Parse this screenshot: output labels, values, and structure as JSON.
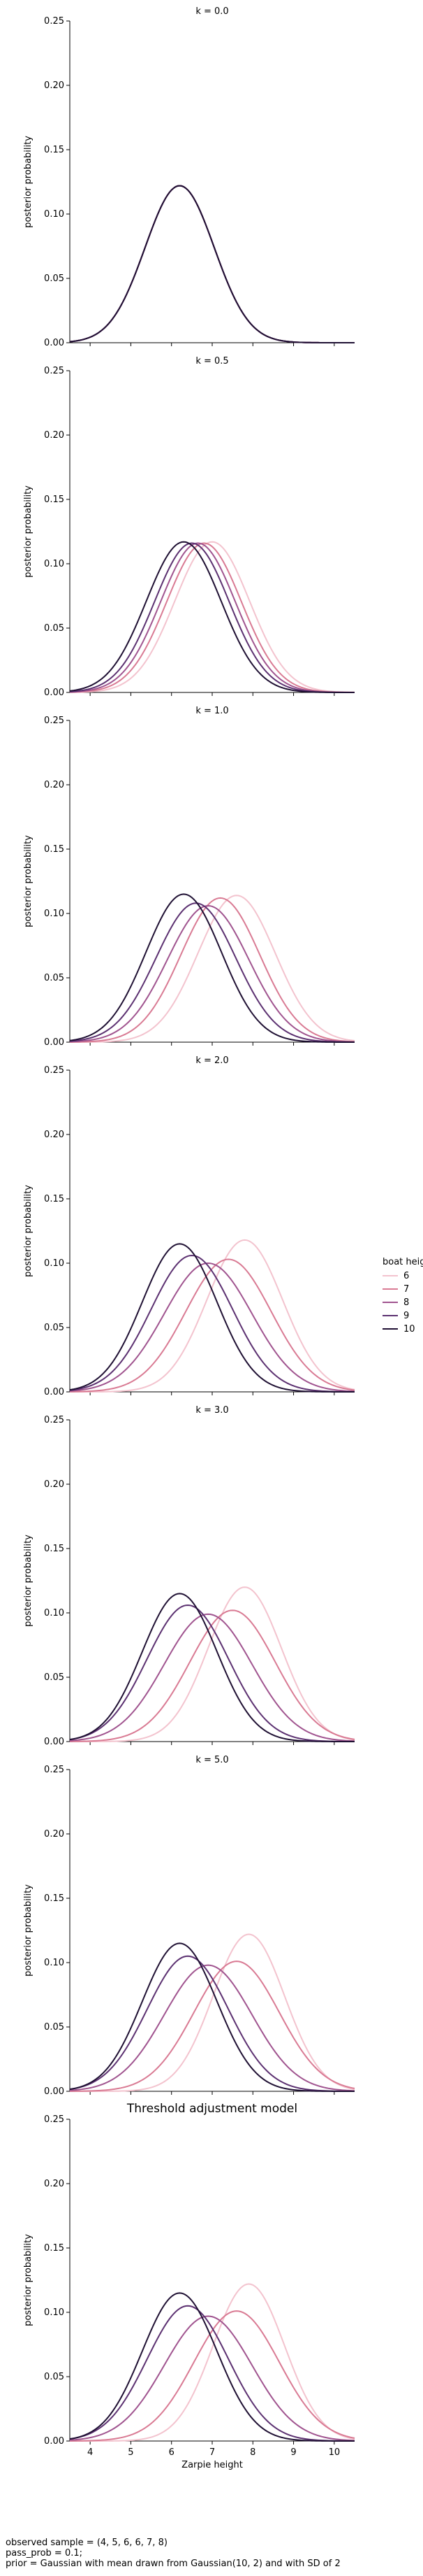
{
  "x_axis_label": "Zarpie height",
  "y_axis_label": "posterior probability",
  "x_ticks": [
    4,
    5,
    6,
    7,
    8,
    9,
    10
  ],
  "y_ticks": [
    0.0,
    0.05,
    0.1,
    0.15,
    0.2,
    0.25
  ],
  "xlim": [
    3.5,
    10.5
  ],
  "ylim": [
    0,
    0.25
  ],
  "legend": {
    "title": "boat height",
    "entries": [
      "6",
      "7",
      "8",
      "9",
      "10"
    ],
    "placement": "right"
  },
  "colors": {
    "6": "#f3c3ce",
    "7": "#d97a93",
    "8": "#a0548f",
    "9": "#5c3171",
    "10": "#1f1033"
  },
  "footer": {
    "line1": "observed sample = (4, 5, 6, 6, 7, 8)",
    "line2": "pass_prob = 0.1;",
    "line3": "prior = Gaussian with mean drawn from Gaussian(10, 2) and with SD of 2"
  },
  "chart_data": [
    {
      "type": "line",
      "title": "k = 0.0",
      "series": [
        {
          "name": "6",
          "peak_x": 6.2,
          "peak_y": 0.122,
          "sd": 0.85
        },
        {
          "name": "7",
          "peak_x": 6.2,
          "peak_y": 0.122,
          "sd": 0.85
        },
        {
          "name": "8",
          "peak_x": 6.2,
          "peak_y": 0.122,
          "sd": 0.85
        },
        {
          "name": "9",
          "peak_x": 6.2,
          "peak_y": 0.122,
          "sd": 0.85
        },
        {
          "name": "10",
          "peak_x": 6.2,
          "peak_y": 0.122,
          "sd": 0.85
        }
      ]
    },
    {
      "type": "line",
      "title": "k = 0.5",
      "series": [
        {
          "name": "6",
          "peak_x": 7.0,
          "peak_y": 0.117,
          "sd": 0.92
        },
        {
          "name": "7",
          "peak_x": 6.8,
          "peak_y": 0.116,
          "sd": 0.92
        },
        {
          "name": "8",
          "peak_x": 6.65,
          "peak_y": 0.116,
          "sd": 0.92
        },
        {
          "name": "9",
          "peak_x": 6.5,
          "peak_y": 0.116,
          "sd": 0.92
        },
        {
          "name": "10",
          "peak_x": 6.3,
          "peak_y": 0.117,
          "sd": 0.92
        }
      ]
    },
    {
      "type": "line",
      "title": "k = 1.0",
      "series": [
        {
          "name": "6",
          "peak_x": 7.6,
          "peak_y": 0.114,
          "sd": 0.95
        },
        {
          "name": "7",
          "peak_x": 7.2,
          "peak_y": 0.112,
          "sd": 0.97
        },
        {
          "name": "8",
          "peak_x": 6.9,
          "peak_y": 0.106,
          "sd": 1.0
        },
        {
          "name": "9",
          "peak_x": 6.6,
          "peak_y": 0.108,
          "sd": 0.98
        },
        {
          "name": "10",
          "peak_x": 6.3,
          "peak_y": 0.115,
          "sd": 0.93
        }
      ]
    },
    {
      "type": "line",
      "title": "k = 2.0",
      "series": [
        {
          "name": "6",
          "peak_x": 7.8,
          "peak_y": 0.118,
          "sd": 0.93
        },
        {
          "name": "7",
          "peak_x": 7.4,
          "peak_y": 0.103,
          "sd": 1.05
        },
        {
          "name": "8",
          "peak_x": 6.9,
          "peak_y": 0.1,
          "sd": 1.08
        },
        {
          "name": "9",
          "peak_x": 6.5,
          "peak_y": 0.106,
          "sd": 1.0
        },
        {
          "name": "10",
          "peak_x": 6.2,
          "peak_y": 0.115,
          "sd": 0.92
        }
      ]
    },
    {
      "type": "line",
      "title": "k = 3.0",
      "series": [
        {
          "name": "6",
          "peak_x": 7.8,
          "peak_y": 0.12,
          "sd": 0.9
        },
        {
          "name": "7",
          "peak_x": 7.5,
          "peak_y": 0.102,
          "sd": 1.05
        },
        {
          "name": "8",
          "peak_x": 6.9,
          "peak_y": 0.099,
          "sd": 1.08
        },
        {
          "name": "9",
          "peak_x": 6.4,
          "peak_y": 0.106,
          "sd": 1.0
        },
        {
          "name": "10",
          "peak_x": 6.2,
          "peak_y": 0.115,
          "sd": 0.92
        }
      ]
    },
    {
      "type": "line",
      "title": "k = 5.0",
      "series": [
        {
          "name": "6",
          "peak_x": 7.9,
          "peak_y": 0.122,
          "sd": 0.88
        },
        {
          "name": "7",
          "peak_x": 7.6,
          "peak_y": 0.101,
          "sd": 1.05
        },
        {
          "name": "8",
          "peak_x": 6.9,
          "peak_y": 0.098,
          "sd": 1.08
        },
        {
          "name": "9",
          "peak_x": 6.4,
          "peak_y": 0.105,
          "sd": 1.0
        },
        {
          "name": "10",
          "peak_x": 6.2,
          "peak_y": 0.115,
          "sd": 0.92
        }
      ]
    },
    {
      "type": "line",
      "title": "Threshold adjustment model",
      "series": [
        {
          "name": "6",
          "peak_x": 7.9,
          "peak_y": 0.122,
          "sd": 0.88
        },
        {
          "name": "7",
          "peak_x": 7.6,
          "peak_y": 0.101,
          "sd": 1.05
        },
        {
          "name": "8",
          "peak_x": 6.9,
          "peak_y": 0.097,
          "sd": 1.08
        },
        {
          "name": "9",
          "peak_x": 6.4,
          "peak_y": 0.105,
          "sd": 1.0
        },
        {
          "name": "10",
          "peak_x": 6.2,
          "peak_y": 0.115,
          "sd": 0.92
        }
      ]
    }
  ]
}
